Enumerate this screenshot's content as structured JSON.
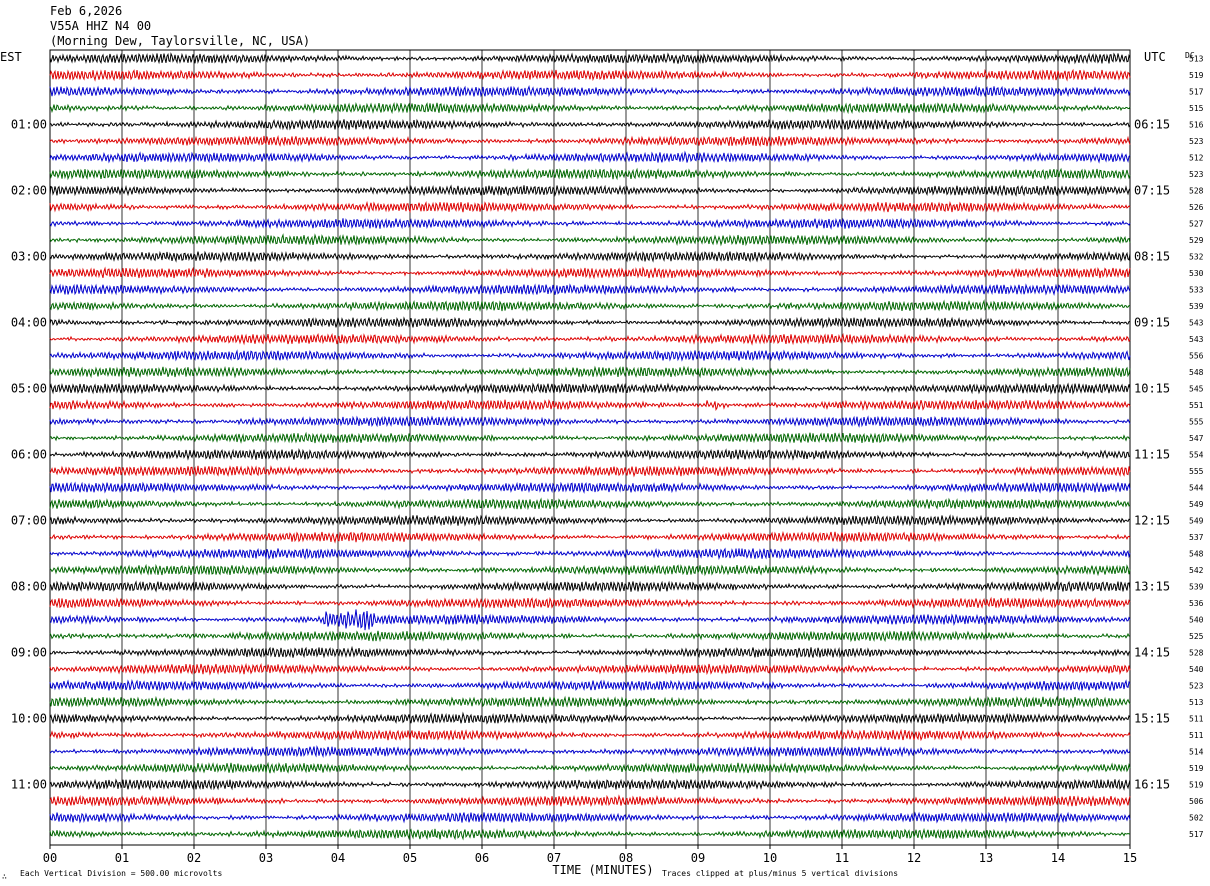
{
  "header": {
    "date": "Feb 6,2026",
    "station": "V55A HHZ N4 00",
    "location": "(Morning Dew, Taylorsville, NC, USA)"
  },
  "left_zone": "EST",
  "right_zone": "UTC",
  "dc_label": "DC",
  "footer": {
    "scale": "Each Vertical Division =  500.00 microvolts",
    "clip_note": "Traces clipped at plus/minus 5 vertical divisions",
    "logo_mark": "∴"
  },
  "chart_data": {
    "type": "helicorder",
    "title": "",
    "xlabel": "TIME (MINUTES)",
    "x_ticks": [
      "00",
      "01",
      "02",
      "03",
      "04",
      "05",
      "06",
      "07",
      "08",
      "09",
      "10",
      "11",
      "12",
      "13",
      "14",
      "15"
    ],
    "xlim": [
      0,
      15
    ],
    "traces_per_hour": 4,
    "minutes_per_trace": 15,
    "left_hour_labels": [
      "01:00",
      "02:00",
      "03:00",
      "04:00",
      "05:00",
      "06:00",
      "07:00",
      "08:00",
      "09:00",
      "10:00",
      "11:00"
    ],
    "right_hour_labels": [
      "06:15",
      "07:15",
      "08:15",
      "09:15",
      "10:15",
      "11:15",
      "12:15",
      "13:15",
      "14:15",
      "15:15",
      "16:15"
    ],
    "trace_colors": [
      "#000000",
      "#dd0000",
      "#0000cc",
      "#006600"
    ],
    "dc_offsets": [
      513,
      519,
      517,
      515,
      516,
      523,
      512,
      523,
      528,
      526,
      527,
      529,
      532,
      530,
      533,
      539,
      543,
      543,
      556,
      548,
      545,
      551,
      555,
      547,
      554,
      555,
      544,
      549,
      549,
      537,
      548,
      542,
      539,
      536,
      540,
      525,
      528,
      540,
      523,
      513,
      511,
      511,
      514,
      519,
      519,
      506,
      502,
      517
    ],
    "events": [
      {
        "trace": 34,
        "minute_start": 3.8,
        "minute_end": 4.5,
        "label": "burst on blue trace near 08:30"
      },
      {
        "trace": 21,
        "minute_start": 9.1,
        "minute_end": 9.4,
        "label": "spike on red trace near 05:15"
      }
    ]
  }
}
